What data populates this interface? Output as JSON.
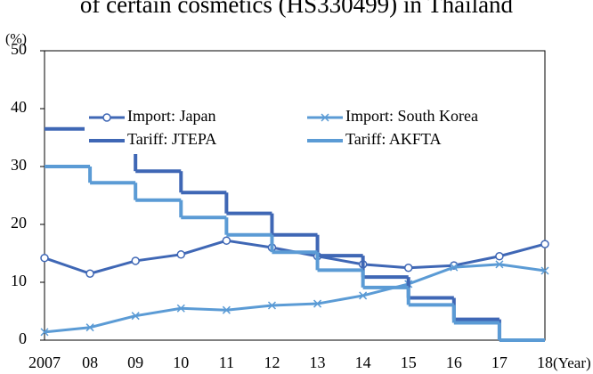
{
  "chart_data": {
    "type": "line",
    "title": "of certain cosmetics (HS330499) in Thailand",
    "y_label": "(%)",
    "x_label": "(Year)",
    "categories": [
      "2007",
      "08",
      "09",
      "10",
      "11",
      "12",
      "13",
      "14",
      "15",
      "16",
      "17",
      "18"
    ],
    "ylim": [
      0,
      50
    ],
    "yticks": [
      0,
      10,
      20,
      30,
      40,
      50
    ],
    "legend": "upper center",
    "series": [
      {
        "name": "Import: Japan",
        "color": "#3f67b5",
        "marker": "circle",
        "step": false,
        "values": [
          14.2,
          11.5,
          13.7,
          14.8,
          17.2,
          16.0,
          14.5,
          13.1,
          12.5,
          12.9,
          14.5,
          16.6
        ]
      },
      {
        "name": "Import: South Korea",
        "color": "#5b9bd5",
        "marker": "x",
        "step": false,
        "values": [
          1.4,
          2.2,
          4.2,
          5.5,
          5.2,
          6.0,
          6.3,
          7.7,
          9.7,
          12.6,
          13.1,
          12.0
        ]
      },
      {
        "name": "Tariff: JTEPA",
        "color": "#3f67b5",
        "marker": "none",
        "step": true,
        "values": [
          36.5,
          32.9,
          29.2,
          25.5,
          21.9,
          18.2,
          14.6,
          10.9,
          7.3,
          3.6,
          0,
          0
        ]
      },
      {
        "name": "Tariff: AKFTA",
        "color": "#5b9bd5",
        "marker": "none",
        "step": true,
        "values": [
          30.0,
          27.2,
          24.2,
          21.2,
          18.2,
          15.2,
          12.1,
          9.1,
          6.1,
          3.0,
          0,
          0
        ]
      }
    ]
  }
}
